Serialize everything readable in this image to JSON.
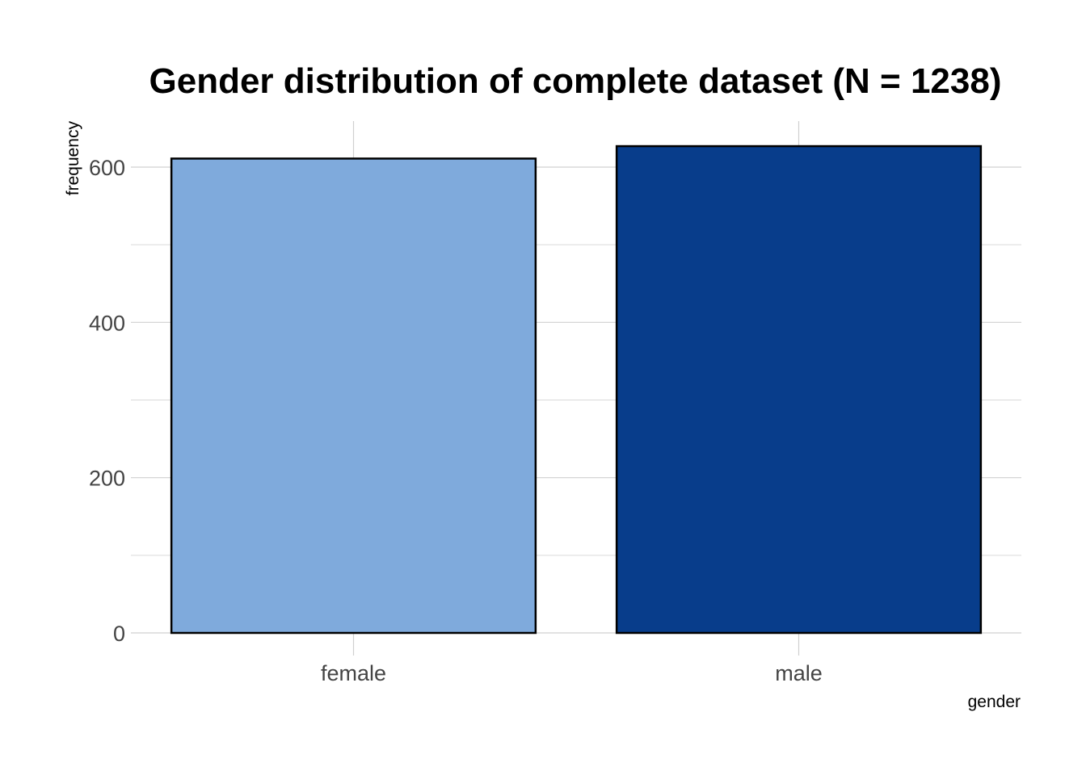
{
  "chart_data": {
    "type": "bar",
    "title": "Gender distribution of complete dataset (N = 1238)",
    "xlabel": "gender",
    "ylabel": "frequency",
    "categories": [
      "female",
      "male"
    ],
    "values": [
      611,
      627
    ],
    "colors": [
      "#7FAADC",
      "#083D8B"
    ],
    "bar_outline_color": "#000000",
    "ylim": [
      0,
      655
    ],
    "y_ticks": [
      0,
      200,
      400,
      600
    ],
    "y_minor_ticks": [
      100,
      300,
      500
    ],
    "grid": true,
    "legend": "none"
  }
}
